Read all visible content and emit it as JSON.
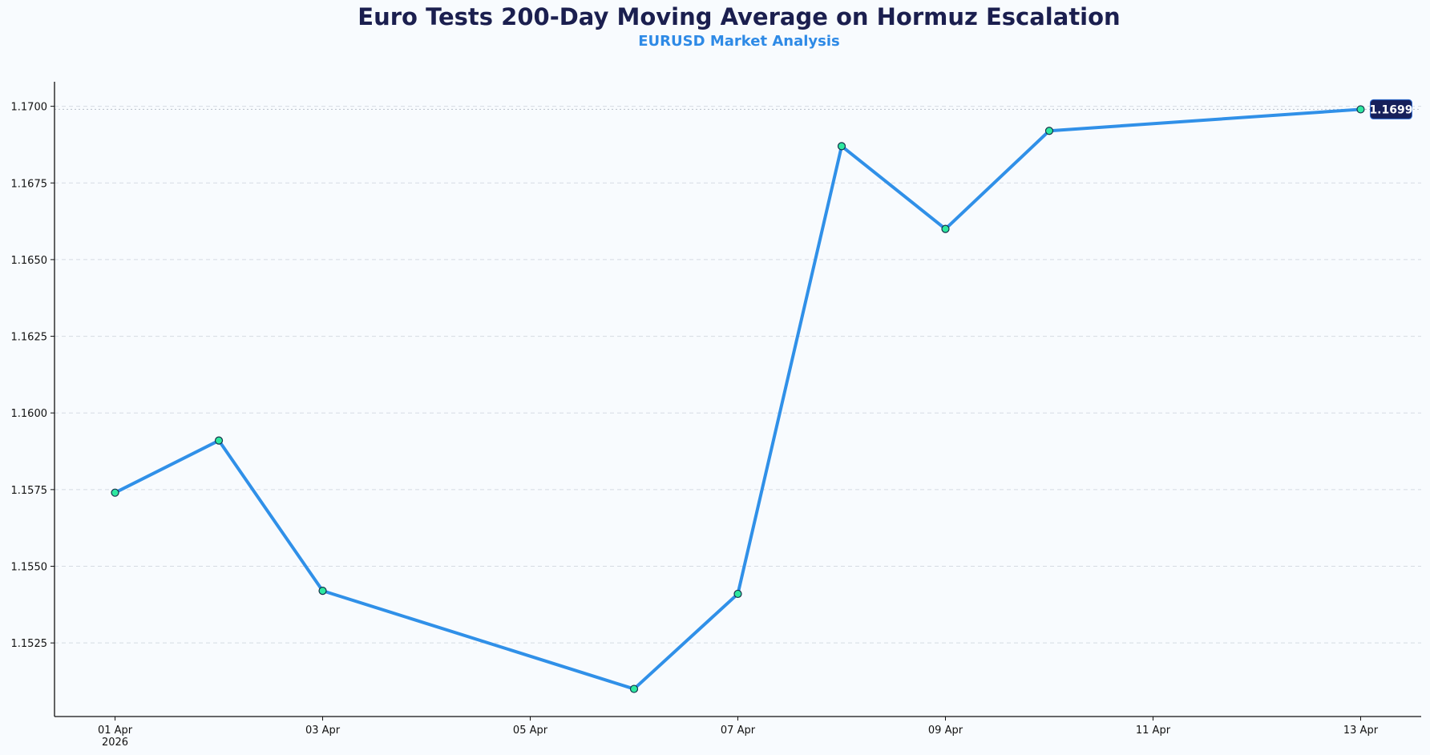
{
  "chart_data": {
    "type": "line",
    "title": "Euro Tests 200-Day Moving Average on Hormuz Escalation",
    "subtitle": "EURUSD Market Analysis",
    "xlabel": "",
    "ylabel": "",
    "x": [
      "2026-04-01",
      "2026-04-02",
      "2026-04-03",
      "2026-04-06",
      "2026-04-07",
      "2026-04-08",
      "2026-04-09",
      "2026-04-10",
      "2026-04-13"
    ],
    "series": [
      {
        "values": [
          1.1574,
          1.1591,
          1.1542,
          1.151,
          1.1541,
          1.1687,
          1.166,
          1.1692,
          1.1699
        ]
      }
    ],
    "xlim": [
      "2026-03-31T10:00",
      "2026-04-13T14:00"
    ],
    "ylim": [
      1.1501,
      1.1708
    ],
    "x_ticks": [
      {
        "date": "2026-04-01",
        "label": "01 Apr",
        "sub": "2026"
      },
      {
        "date": "2026-04-03",
        "label": "03 Apr"
      },
      {
        "date": "2026-04-05",
        "label": "05 Apr"
      },
      {
        "date": "2026-04-07",
        "label": "07 Apr"
      },
      {
        "date": "2026-04-09",
        "label": "09 Apr"
      },
      {
        "date": "2026-04-11",
        "label": "11 Apr"
      },
      {
        "date": "2026-04-13",
        "label": "13 Apr"
      }
    ],
    "y_ticks": [
      "1.1525",
      "1.1550",
      "1.1575",
      "1.1600",
      "1.1625",
      "1.1650",
      "1.1675",
      "1.1700"
    ],
    "grid": "horizontal dashed",
    "last_value_label": "1.1699",
    "reference_line": 1.1699,
    "colors": {
      "line": "#3090e8",
      "marker": "#2ee8a0",
      "marker_edge": "#15304a",
      "label_bg": "#16205a",
      "title": "#1b1f4f",
      "subtitle": "#2e8ae6"
    }
  }
}
